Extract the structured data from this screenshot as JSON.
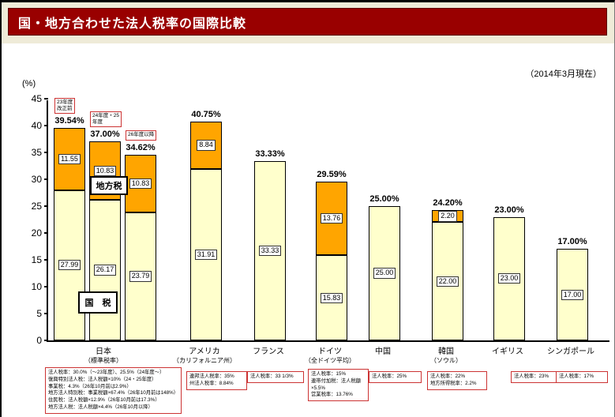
{
  "page": {
    "title": "国・地方合わせた法人税率の国際比較",
    "date_note": "（2014年3月現在）",
    "unit_label": "(%)"
  },
  "legend": {
    "local": "地方税",
    "national": "国　税"
  },
  "colors": {
    "title_bar_bg": "#990000",
    "title_text": "#ffffff",
    "band_bg": "#efebd8",
    "national_fill": "#FFFFCC",
    "local_fill": "#FFA500",
    "box_border_red": "#CC3333"
  },
  "chart_data": {
    "type": "bar",
    "stacked": true,
    "title": "国・地方合わせた法人税率の国際比較",
    "subtitle": "（2014年3月現在）",
    "ylabel": "(%)",
    "ylim": [
      0,
      45
    ],
    "ytick_step": 5,
    "grid": false,
    "legend_entries": [
      "国税",
      "地方税"
    ],
    "bars": [
      {
        "group": "日本",
        "callout": "23年度\n改正前",
        "total": 39.54,
        "total_label": "39.54%",
        "national": 27.99,
        "local": 11.55
      },
      {
        "group": "日本",
        "callout": "24年度・25\n年度",
        "total": 37.0,
        "total_label": "37.00%",
        "national": 26.17,
        "local": 10.83
      },
      {
        "group": "日本",
        "callout": "26年度以降",
        "total": 34.62,
        "total_label": "34.62%",
        "national": 23.79,
        "local": 10.83
      },
      {
        "group": "アメリカ",
        "total": 40.75,
        "total_label": "40.75%",
        "national": 31.91,
        "local": 8.84
      },
      {
        "group": "フランス",
        "total": 33.33,
        "total_label": "33.33%",
        "national": 33.33,
        "local": 0
      },
      {
        "group": "ドイツ",
        "total": 29.59,
        "total_label": "29.59%",
        "national": 15.83,
        "local": 13.76
      },
      {
        "group": "中国",
        "total": 25.0,
        "total_label": "25.00%",
        "national": 25.0,
        "local": 0
      },
      {
        "group": "韓国",
        "total": 24.2,
        "total_label": "24.20%",
        "national": 22.0,
        "local": 2.2
      },
      {
        "group": "イギリス",
        "total": 23.0,
        "total_label": "23.00%",
        "national": 23.0,
        "local": 0
      },
      {
        "group": "シンガポール",
        "total": 17.0,
        "total_label": "17.00%",
        "national": 17.0,
        "local": 0
      }
    ],
    "xaxis": [
      {
        "label": "日本",
        "sublabel": "（標準税率）"
      },
      {
        "label": "アメリカ",
        "sublabel": "（カリフォルニア州）"
      },
      {
        "label": "フランス",
        "sublabel": ""
      },
      {
        "label": "ドイツ",
        "sublabel": "（全ドイツ平均）"
      },
      {
        "label": "中国",
        "sublabel": ""
      },
      {
        "label": "韓国",
        "sublabel": "（ソウル）"
      },
      {
        "label": "イギリス",
        "sublabel": ""
      },
      {
        "label": "シンガポール",
        "sublabel": ""
      }
    ]
  },
  "footnotes": [
    {
      "country": "日本",
      "lines": [
        "法人税率：30.0%（～23年度）、25.5%（24年度～）",
        "復興特別法人税：法人税額×10%（24・25年度）",
        "事業税：4.3%（26年10月前は2.9%）",
        "地方法人特別税：事業税額×67.4%（26年10月前は148%）",
        "住民税：法人税額×12.9%（26年10月前は17.3%）",
        "地方法人税：法人税額×4.4%（26年10月以降）"
      ]
    },
    {
      "country": "アメリカ",
      "lines": [
        "連邦法人税率：35%",
        "州法人税率：8.84%"
      ]
    },
    {
      "country": "フランス",
      "lines": [
        "法人税率：33 1/3%"
      ]
    },
    {
      "country": "ドイツ",
      "lines": [
        "法人税率：15%",
        "連帯付加税：法人税額×5.5%",
        "営業税率：13.76%"
      ]
    },
    {
      "country": "中国",
      "lines": [
        "法人税率：25%"
      ]
    },
    {
      "country": "韓国",
      "lines": [
        "法人税率：22%",
        "地方所得税率：2.2%"
      ]
    },
    {
      "country": "イギリス",
      "lines": [
        "法人税率：23%"
      ]
    },
    {
      "country": "シンガポール",
      "lines": [
        "法人税率：17%"
      ]
    }
  ]
}
